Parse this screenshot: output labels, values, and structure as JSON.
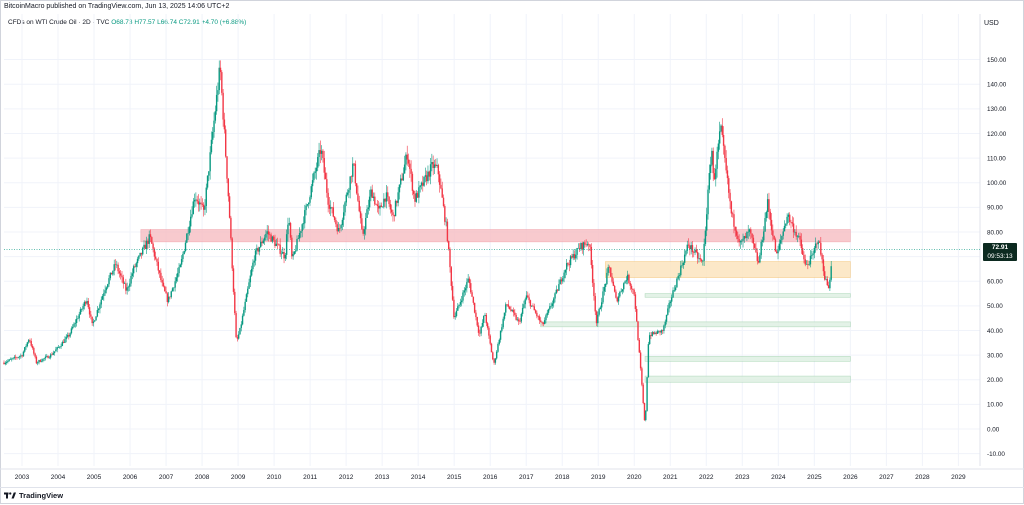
{
  "header": {
    "published": "BitcoinMacro published on TradingView.com, Jun 13, 2025 14:06 UTC+2"
  },
  "legend": {
    "symbol": "CFDs on WTI Crude Oil · 2D · TVC",
    "ohlc": "O68.73 H77.57 L66.74 C72.91 +4.70 (+6.88%)"
  },
  "currency": "USD",
  "price_tag": {
    "price": "72.91",
    "countdown": "09:53:13"
  },
  "footer": {
    "brand": "TradingView"
  },
  "colors": {
    "up": "#089981",
    "down": "#f23645",
    "resistance_zone": "#f7c1c6",
    "support_zone": "#fce5bf",
    "demand_zone": "#d8eedd"
  },
  "chart_data": {
    "type": "candlestick",
    "title": "CFDs on WTI Crude Oil · 2D · TVC",
    "xlabel": "",
    "ylabel": "USD",
    "x_ticks": [
      "2003",
      "2004",
      "2005",
      "2006",
      "2007",
      "2008",
      "2009",
      "2010",
      "2011",
      "2012",
      "2013",
      "2014",
      "2015",
      "2016",
      "2017",
      "2018",
      "2019",
      "2020",
      "2021",
      "2022",
      "2023",
      "2024",
      "2025",
      "2026",
      "2027",
      "2028",
      "2029"
    ],
    "y_ticks": [
      "-10.00",
      "0.00",
      "10.00",
      "20.00",
      "30.00",
      "40.00",
      "50.00",
      "60.00",
      "70.00",
      "80.00",
      "90.00",
      "100.00",
      "110.00",
      "120.00",
      "130.00",
      "140.00",
      "150.00"
    ],
    "ylim": [
      -15,
      162
    ],
    "last_price": 72.91,
    "grid": true,
    "zones": [
      {
        "name": "resistance",
        "x": [
          2006.3,
          2026.0
        ],
        "y": [
          76,
          81
        ]
      },
      {
        "name": "support",
        "x": [
          2019.2,
          2026.0
        ],
        "y": [
          61.5,
          68
        ]
      },
      {
        "name": "demand",
        "x": [
          2020.3,
          2026.0
        ],
        "y": [
          53.5,
          55
        ]
      },
      {
        "name": "demand",
        "x": [
          2017.4,
          2026.0
        ],
        "y": [
          41.5,
          43.5
        ]
      },
      {
        "name": "demand",
        "x": [
          2020.3,
          2026.0
        ],
        "y": [
          27.5,
          29.5
        ]
      },
      {
        "name": "demand",
        "x": [
          2020.3,
          2026.0
        ],
        "y": [
          19,
          21.5
        ]
      }
    ],
    "price_path": [
      [
        2002.5,
        27
      ],
      [
        2003.0,
        30
      ],
      [
        2003.2,
        37
      ],
      [
        2003.4,
        27
      ],
      [
        2003.8,
        30
      ],
      [
        2004.0,
        33
      ],
      [
        2004.3,
        38
      ],
      [
        2004.8,
        53
      ],
      [
        2004.95,
        42
      ],
      [
        2005.3,
        57
      ],
      [
        2005.6,
        67
      ],
      [
        2005.9,
        56
      ],
      [
        2006.1,
        65
      ],
      [
        2006.55,
        78
      ],
      [
        2006.9,
        58
      ],
      [
        2007.05,
        52
      ],
      [
        2007.4,
        66
      ],
      [
        2007.8,
        95
      ],
      [
        2008.05,
        88
      ],
      [
        2008.5,
        147
      ],
      [
        2008.75,
        90
      ],
      [
        2008.95,
        35
      ],
      [
        2009.05,
        40
      ],
      [
        2009.45,
        70
      ],
      [
        2009.8,
        80
      ],
      [
        2010.3,
        70
      ],
      [
        2010.4,
        87
      ],
      [
        2010.5,
        68
      ],
      [
        2010.9,
        90
      ],
      [
        2011.3,
        114
      ],
      [
        2011.5,
        93
      ],
      [
        2011.8,
        80
      ],
      [
        2012.2,
        108
      ],
      [
        2012.45,
        78
      ],
      [
        2012.7,
        97
      ],
      [
        2012.9,
        88
      ],
      [
        2013.1,
        95
      ],
      [
        2013.3,
        86
      ],
      [
        2013.7,
        112
      ],
      [
        2013.9,
        93
      ],
      [
        2014.4,
        107
      ],
      [
        2014.55,
        105
      ],
      [
        2014.8,
        80
      ],
      [
        2015.0,
        45
      ],
      [
        2015.4,
        61
      ],
      [
        2015.7,
        38
      ],
      [
        2015.85,
        47
      ],
      [
        2016.1,
        26
      ],
      [
        2016.45,
        51
      ],
      [
        2016.8,
        43
      ],
      [
        2017.0,
        54
      ],
      [
        2017.45,
        42
      ],
      [
        2017.8,
        54
      ],
      [
        2018.1,
        66
      ],
      [
        2018.5,
        74
      ],
      [
        2018.75,
        76
      ],
      [
        2018.95,
        43
      ],
      [
        2019.3,
        66
      ],
      [
        2019.5,
        52
      ],
      [
        2019.8,
        62
      ],
      [
        2020.0,
        55
      ],
      [
        2020.2,
        20
      ],
      [
        2020.3,
        0
      ],
      [
        2020.4,
        38
      ],
      [
        2020.8,
        40
      ],
      [
        2021.0,
        52
      ],
      [
        2021.5,
        75
      ],
      [
        2021.9,
        67
      ],
      [
        2022.15,
        115
      ],
      [
        2022.2,
        100
      ],
      [
        2022.4,
        122
      ],
      [
        2022.7,
        87
      ],
      [
        2022.95,
        75
      ],
      [
        2023.2,
        80
      ],
      [
        2023.45,
        67
      ],
      [
        2023.7,
        92
      ],
      [
        2023.95,
        70
      ],
      [
        2024.25,
        87
      ],
      [
        2024.6,
        76
      ],
      [
        2024.75,
        66
      ],
      [
        2024.95,
        70
      ],
      [
        2025.1,
        78
      ],
      [
        2025.3,
        61
      ],
      [
        2025.4,
        57
      ],
      [
        2025.45,
        64
      ],
      [
        2025.5,
        72.9
      ]
    ]
  }
}
